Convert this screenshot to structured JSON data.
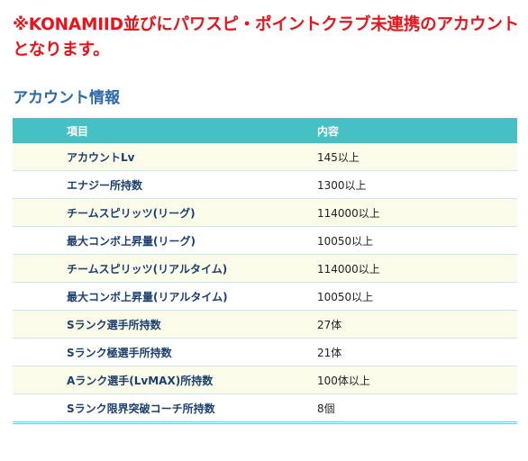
{
  "notice": {
    "line1": "※KONAMIID並びにパワスピ・ポイントクラブ未連携のアカウント",
    "line2": "となります。"
  },
  "account_info": {
    "title": "アカウント情報",
    "headers": {
      "item": "項目",
      "content": "内容"
    },
    "rows": [
      {
        "item": "アカウントLv",
        "content": "145以上"
      },
      {
        "item": "エナジー所持数",
        "content": "1300以上"
      },
      {
        "item": "チームスピリッツ(リーグ)",
        "content": "114000以上"
      },
      {
        "item": "最大コンボ上昇量(リーグ)",
        "content": "10050以上"
      },
      {
        "item": "チームスピリッツ(リアルタイム)",
        "content": "114000以上"
      },
      {
        "item": "最大コンボ上昇量(リアルタイム)",
        "content": "10050以上"
      },
      {
        "item": "Sランク選手所持数",
        "content": "27体"
      },
      {
        "item": "Sランク極選手所持数",
        "content": "21体"
      },
      {
        "item": "Aランク選手(LvMAX)所持数",
        "content": "100体以上"
      },
      {
        "item": "Sランク限界突破コーチ所持数",
        "content": "8個"
      }
    ]
  }
}
